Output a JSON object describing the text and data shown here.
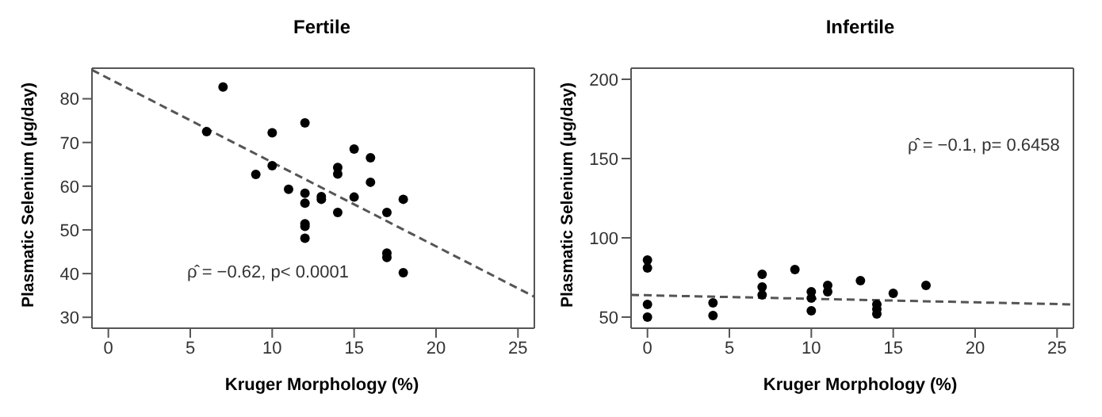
{
  "chart_data": [
    {
      "type": "scatter",
      "title": "Fertile",
      "xlabel": "Kruger Morphology (%)",
      "ylabel": "Plasmatic Selenium (µg/day)",
      "annotations": [
        "ρ̂ = −0.62, p< 0.0001"
      ],
      "xlim": [
        -1,
        26
      ],
      "ylim": [
        27.5,
        87
      ],
      "xticks": [
        0,
        5,
        10,
        15,
        20,
        25
      ],
      "yticks": [
        30,
        40,
        50,
        60,
        70,
        80
      ],
      "series": [
        {
          "color": "#000000",
          "marker": "circle",
          "x": [
            6,
            7,
            9,
            10,
            10,
            11,
            12,
            12,
            12,
            12,
            12,
            12,
            13,
            13,
            14,
            14,
            14,
            15,
            15,
            16,
            16,
            17,
            17,
            17,
            18,
            18
          ],
          "values": [
            72.5,
            82.7,
            62.7,
            72.2,
            64.7,
            59.3,
            74.5,
            58.4,
            56.1,
            51.4,
            50.8,
            48.1,
            57.6,
            57.0,
            64.3,
            62.8,
            54.0,
            68.5,
            57.5,
            66.5,
            60.9,
            54.0,
            44.7,
            43.7,
            57.0,
            40.2
          ]
        },
        {
          "type": "line",
          "line_style": "dashed",
          "color": "#555555",
          "x": [
            -1,
            26
          ],
          "values": [
            86.6,
            34.7
          ]
        }
      ]
    },
    {
      "type": "scatter",
      "title": "Infertile",
      "xlabel": "Kruger Morphology (%)",
      "ylabel": "Plasmatic Selenium (µg/day)",
      "annotations": [
        "ρ̂ = −0.1, p= 0.6458"
      ],
      "xlim": [
        -1,
        26
      ],
      "ylim": [
        43,
        207
      ],
      "xticks": [
        0,
        5,
        10,
        15,
        20,
        25
      ],
      "yticks": [
        50,
        100,
        150,
        200
      ],
      "series": [
        {
          "color": "#000000",
          "marker": "circle",
          "x": [
            0,
            0,
            0,
            0,
            4,
            4,
            7,
            7,
            7,
            9,
            10,
            10,
            10,
            11,
            11,
            13,
            14,
            14,
            14,
            15,
            17
          ],
          "values": [
            86,
            81,
            58,
            50,
            59,
            51,
            77,
            69,
            64,
            80,
            66,
            62,
            54,
            70,
            66,
            73,
            58,
            55,
            52,
            65,
            70
          ]
        },
        {
          "type": "line",
          "line_style": "dashed",
          "color": "#555555",
          "x": [
            -1,
            26
          ],
          "values": [
            64,
            58
          ]
        }
      ]
    }
  ]
}
